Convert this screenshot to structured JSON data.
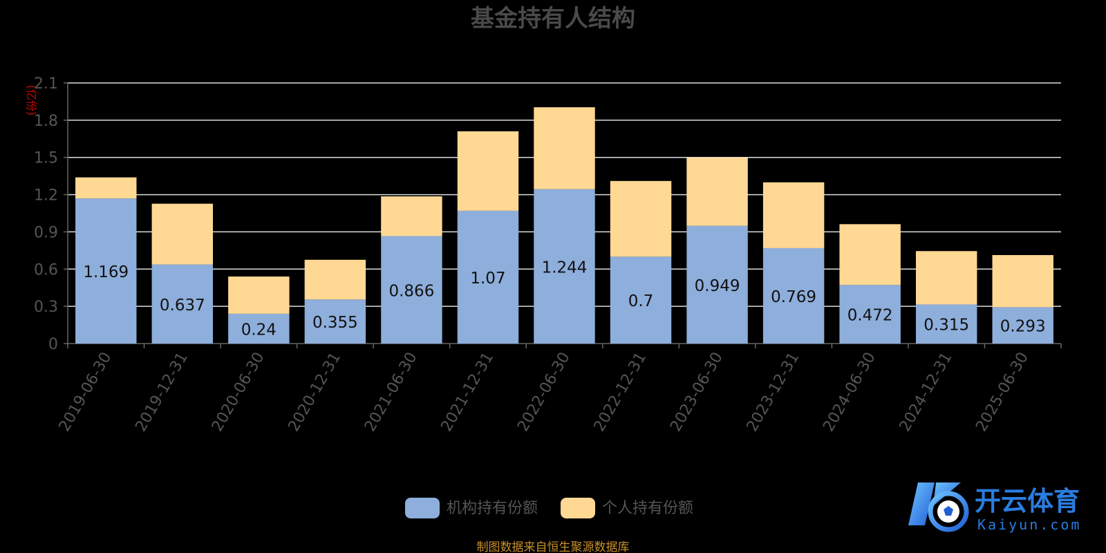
{
  "chart_data": {
    "type": "bar",
    "stacked": true,
    "title": "基金持有人结构",
    "ylabel": "(亿份)",
    "ylim": [
      0,
      2.1
    ],
    "yticks": [
      0,
      0.3,
      0.6,
      0.9,
      1.2,
      1.5,
      1.8,
      2.1
    ],
    "grid": true,
    "legend_position": "bottom",
    "categories": [
      "2019-06-30",
      "2019-12-31",
      "2020-06-30",
      "2020-12-31",
      "2021-06-30",
      "2021-12-31",
      "2022-06-30",
      "2022-12-31",
      "2023-06-30",
      "2023-12-31",
      "2024-06-30",
      "2024-12-31",
      "2025-06-30"
    ],
    "series": [
      {
        "name": "机构持有份额",
        "color": "#8eaedb",
        "show_labels": true,
        "values": [
          1.169,
          0.637,
          0.24,
          0.355,
          0.866,
          1.07,
          1.244,
          0.7,
          0.949,
          0.769,
          0.472,
          0.315,
          0.293
        ]
      },
      {
        "name": "个人持有份额",
        "color": "#ffd894",
        "show_labels": false,
        "values": [
          0.17,
          0.49,
          0.3,
          0.32,
          0.32,
          0.64,
          0.66,
          0.61,
          0.55,
          0.53,
          0.49,
          0.43,
          0.42
        ]
      }
    ],
    "source_note": "制图数据来自恒生聚源数据库"
  },
  "watermark": {
    "text_cn": "开云体育",
    "text_en": "Kaiyun.com",
    "color": "#2a7de1"
  }
}
